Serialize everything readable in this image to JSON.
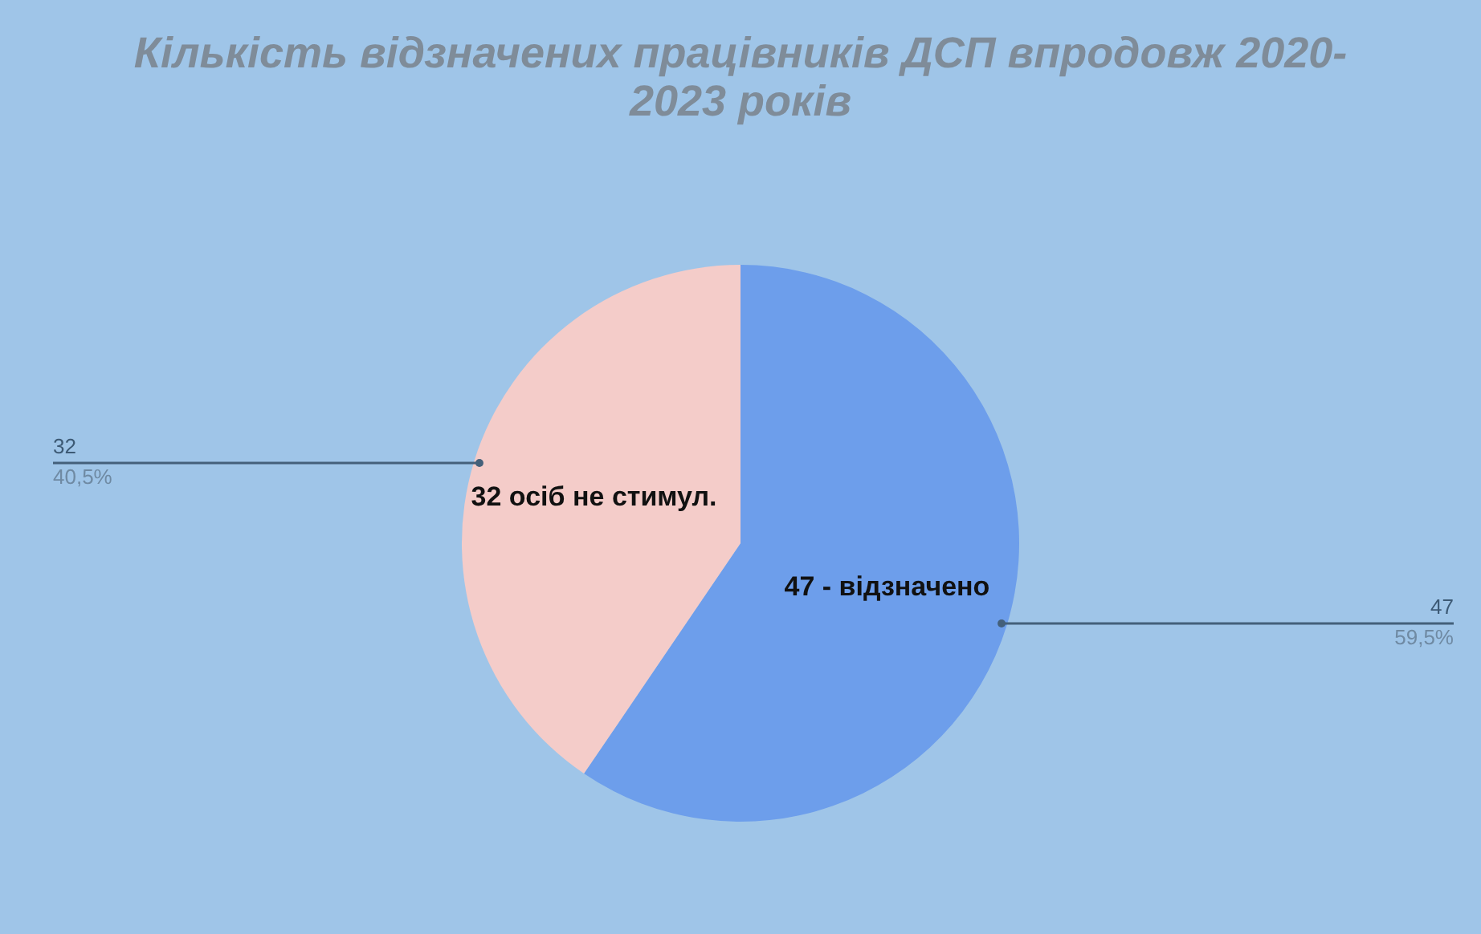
{
  "chart_data": {
    "type": "pie",
    "title": "Кількість відзначених працівників ДСП впродовж 2020-2023 років",
    "categories": [
      "47 - відзначено",
      "32 осіб не стимул."
    ],
    "values": [
      47,
      32
    ],
    "colors": [
      "#6d9eeb",
      "#f4ccc9"
    ],
    "value_labels": [
      "47\n59,5%",
      "32\n40,5%"
    ],
    "legend": false
  }
}
